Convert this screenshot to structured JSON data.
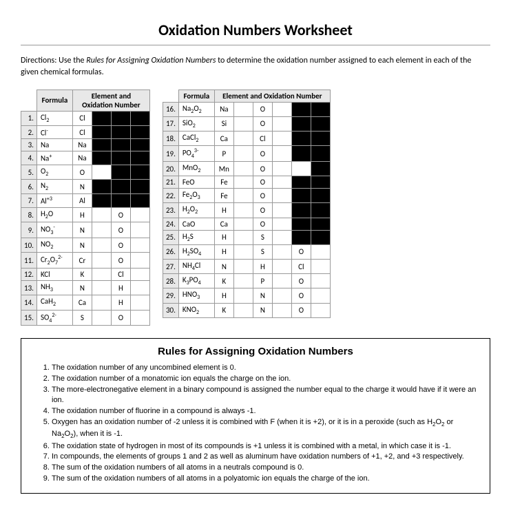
{
  "title": "Oxidation Numbers Worksheet",
  "directions_prefix": "Directions:  Use the ",
  "directions_italic": "Rules for Assigning Oxidation Numbers",
  "directions_suffix": " to determine the oxidation number assigned to each element in each of the given chemical formulas.",
  "header_formula": "Formula",
  "header_elox": "Element and Oxidation Number",
  "left_table": [
    {
      "n": "1.",
      "f": "Cl<sub>2</sub>",
      "cells": [
        {
          "t": "Cl"
        },
        {
          "black": true
        },
        {
          "black": true
        },
        {
          "black": true
        }
      ]
    },
    {
      "n": "2.",
      "f": "Cl<sup>-</sup>",
      "cells": [
        {
          "t": "Cl"
        },
        {
          "black": true
        },
        {
          "black": true
        },
        {
          "black": true
        }
      ]
    },
    {
      "n": "3.",
      "f": "Na",
      "cells": [
        {
          "t": "Na"
        },
        {
          "black": true
        },
        {
          "black": true
        },
        {
          "black": true
        }
      ]
    },
    {
      "n": "4.",
      "f": "Na<sup>+</sup>",
      "cells": [
        {
          "t": "Na"
        },
        {
          "black": true
        },
        {
          "black": true
        },
        {
          "black": true
        }
      ]
    },
    {
      "n": "5.",
      "f": "O<sub>2</sub>",
      "cells": [
        {
          "t": "O"
        },
        {
          "t": ""
        },
        {
          "black": true
        },
        {
          "black": true
        }
      ]
    },
    {
      "n": "6.",
      "f": "N<sub>2</sub>",
      "cells": [
        {
          "t": "N"
        },
        {
          "black": true
        },
        {
          "black": true
        },
        {
          "black": true
        }
      ]
    },
    {
      "n": "7.",
      "f": "Al<sup>+3</sup>",
      "cells": [
        {
          "t": "Al"
        },
        {
          "black": true
        },
        {
          "black": true
        },
        {
          "black": true
        }
      ]
    },
    {
      "n": "8.",
      "f": "H<sub>2</sub>O",
      "cells": [
        {
          "t": "H"
        },
        {
          "t": ""
        },
        {
          "t": "O"
        },
        {
          "t": ""
        }
      ]
    },
    {
      "n": "9.",
      "f": "NO<sub>3</sub><sup>-</sup>",
      "cells": [
        {
          "t": "N"
        },
        {
          "t": ""
        },
        {
          "t": "O"
        },
        {
          "t": ""
        }
      ]
    },
    {
      "n": "10.",
      "f": "NO<sub>2</sub>",
      "cells": [
        {
          "t": "N"
        },
        {
          "t": ""
        },
        {
          "t": "O"
        },
        {
          "t": ""
        }
      ]
    },
    {
      "n": "11.",
      "f": "Cr<sub>2</sub>O<sub>7</sub><sup>2-</sup>",
      "cells": [
        {
          "t": "Cr"
        },
        {
          "t": ""
        },
        {
          "t": "O"
        },
        {
          "t": ""
        }
      ]
    },
    {
      "n": "12.",
      "f": "KCl",
      "cells": [
        {
          "t": "K"
        },
        {
          "t": ""
        },
        {
          "t": "Cl"
        },
        {
          "t": ""
        }
      ]
    },
    {
      "n": "13.",
      "f": "NH<sub>3</sub>",
      "cells": [
        {
          "t": "N"
        },
        {
          "t": ""
        },
        {
          "t": "H"
        },
        {
          "t": ""
        }
      ]
    },
    {
      "n": "14.",
      "f": "CaH<sub>2</sub>",
      "cells": [
        {
          "t": "Ca"
        },
        {
          "t": ""
        },
        {
          "t": "H"
        },
        {
          "t": ""
        }
      ]
    },
    {
      "n": "15.",
      "f": "SO<sub>4</sub><sup>2-</sup>",
      "cells": [
        {
          "t": "S"
        },
        {
          "t": ""
        },
        {
          "t": "O"
        },
        {
          "t": ""
        }
      ]
    }
  ],
  "right_table": [
    {
      "n": "16.",
      "f": "Na<sub>2</sub>O<sub>2</sub>",
      "cells": [
        {
          "t": "Na"
        },
        {
          "t": ""
        },
        {
          "t": "O"
        },
        {
          "t": ""
        },
        {
          "black": true
        },
        {
          "black": true
        }
      ]
    },
    {
      "n": "17.",
      "f": "SiO<sub>2</sub>",
      "cells": [
        {
          "t": "Si"
        },
        {
          "t": ""
        },
        {
          "t": "O"
        },
        {
          "t": ""
        },
        {
          "black": true
        },
        {
          "black": true
        }
      ]
    },
    {
      "n": "18.",
      "f": "CaCl<sub>2</sub>",
      "cells": [
        {
          "t": "Ca"
        },
        {
          "t": ""
        },
        {
          "t": "Cl"
        },
        {
          "t": ""
        },
        {
          "black": true
        },
        {
          "black": true
        }
      ]
    },
    {
      "n": "19.",
      "f": "PO<sub>4</sub><sup>3-</sup>",
      "cells": [
        {
          "t": "P"
        },
        {
          "t": ""
        },
        {
          "t": "O"
        },
        {
          "t": ""
        },
        {
          "black": true
        },
        {
          "black": true
        }
      ]
    },
    {
      "n": "20.",
      "f": "MnO<sub>2</sub>",
      "cells": [
        {
          "t": "Mn"
        },
        {
          "t": ""
        },
        {
          "t": "O"
        },
        {
          "t": ""
        },
        {
          "t": ""
        },
        {
          "black": true
        }
      ]
    },
    {
      "n": "21.",
      "f": "FeO",
      "cells": [
        {
          "t": "Fe"
        },
        {
          "t": ""
        },
        {
          "t": "O"
        },
        {
          "t": ""
        },
        {
          "black": true
        },
        {
          "black": true
        }
      ]
    },
    {
      "n": "22.",
      "f": "Fe<sub>2</sub>O<sub>3</sub>",
      "cells": [
        {
          "t": "Fe"
        },
        {
          "t": ""
        },
        {
          "t": "O"
        },
        {
          "t": ""
        },
        {
          "black": true
        },
        {
          "black": true
        }
      ]
    },
    {
      "n": "23.",
      "f": "H<sub>2</sub>O<sub>2</sub>",
      "cells": [
        {
          "t": "H"
        },
        {
          "t": ""
        },
        {
          "t": "O"
        },
        {
          "t": ""
        },
        {
          "black": true
        },
        {
          "black": true
        }
      ]
    },
    {
      "n": "24.",
      "f": "CaO",
      "cells": [
        {
          "t": "Ca"
        },
        {
          "t": ""
        },
        {
          "t": "O"
        },
        {
          "t": ""
        },
        {
          "black": true
        },
        {
          "black": true
        }
      ]
    },
    {
      "n": "25.",
      "f": "H<sub>2</sub>S",
      "cells": [
        {
          "t": "H"
        },
        {
          "t": ""
        },
        {
          "t": "S"
        },
        {
          "t": ""
        },
        {
          "black": true
        },
        {
          "black": true
        }
      ]
    },
    {
      "n": "26.",
      "f": "H<sub>2</sub>SO<sub>4</sub>",
      "cells": [
        {
          "t": "H"
        },
        {
          "t": ""
        },
        {
          "t": "S"
        },
        {
          "t": ""
        },
        {
          "t": "O"
        },
        {
          "t": ""
        }
      ]
    },
    {
      "n": "27.",
      "f": "NH<sub>4</sub>Cl",
      "cells": [
        {
          "t": "N"
        },
        {
          "t": ""
        },
        {
          "t": "H"
        },
        {
          "t": ""
        },
        {
          "t": "Cl"
        },
        {
          "t": ""
        }
      ]
    },
    {
      "n": "28.",
      "f": "K<sub>3</sub>PO<sub>4</sub>",
      "cells": [
        {
          "t": "K"
        },
        {
          "t": ""
        },
        {
          "t": "P"
        },
        {
          "t": ""
        },
        {
          "t": "O"
        },
        {
          "t": ""
        }
      ]
    },
    {
      "n": "29.",
      "f": "HNO<sub>3</sub>",
      "cells": [
        {
          "t": "H"
        },
        {
          "t": ""
        },
        {
          "t": "N"
        },
        {
          "t": ""
        },
        {
          "t": "O"
        },
        {
          "t": ""
        }
      ]
    },
    {
      "n": "30.",
      "f": "KNO<sub>2</sub>",
      "cells": [
        {
          "t": "K"
        },
        {
          "t": ""
        },
        {
          "t": "N"
        },
        {
          "t": ""
        },
        {
          "t": "O"
        },
        {
          "t": ""
        }
      ]
    }
  ],
  "rules_title": "Rules for Assigning Oxidation Numbers",
  "rules": [
    "The oxidation number of any uncombined element is 0.",
    "The oxidation number of a monatomic ion equals the charge on the ion.",
    "The more-electronegative element in a binary compound is assigned the number equal to the charge it would have if it were an ion.",
    "The oxidation number of fluorine in a compound is always -1.",
    "Oxygen has an oxidation number of -2 unless it is combined with F (when it is +2), or it is in a peroxide (such as H<sub>2</sub>O<sub>2</sub> or Na<sub>2</sub>O<sub>2</sub>), when it is -1.",
    "The oxidation state of hydrogen in most of its compounds is +1 unless it is combined with a metal, in which case it is -1.",
    "In compounds, the elements of groups 1 and 2 as well as aluminum have oxidation numbers of +1, +2, and +3 respectively.",
    "The sum of the oxidation numbers of all atoms in a neutrals compound is 0.",
    "The sum of the oxidation numbers of all atoms in a polyatomic ion equals the charge of the ion."
  ]
}
